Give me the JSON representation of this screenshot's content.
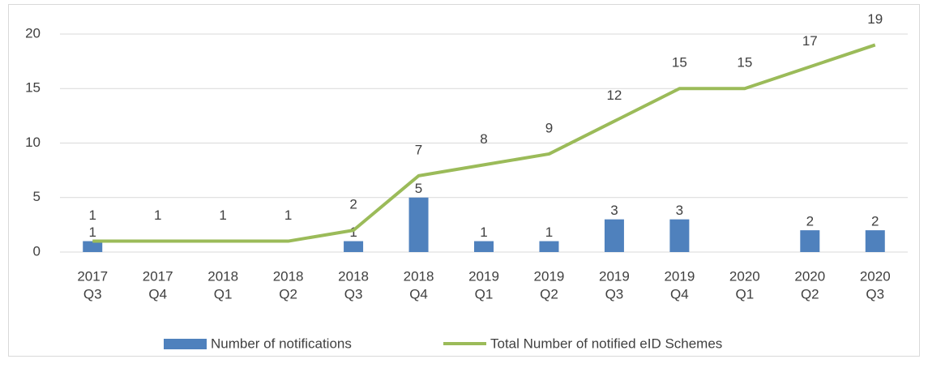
{
  "chart_data": {
    "type": "combo",
    "categories": [
      [
        "2017",
        "Q3"
      ],
      [
        "2017",
        "Q4"
      ],
      [
        "2018",
        "Q1"
      ],
      [
        "2018",
        "Q2"
      ],
      [
        "2018",
        "Q3"
      ],
      [
        "2018",
        "Q4"
      ],
      [
        "2019",
        "Q1"
      ],
      [
        "2019",
        "Q2"
      ],
      [
        "2019",
        "Q3"
      ],
      [
        "2019",
        "Q4"
      ],
      [
        "2020",
        "Q1"
      ],
      [
        "2020",
        "Q2"
      ],
      [
        "2020",
        "Q3"
      ]
    ],
    "series": [
      {
        "name": "Number of notifications",
        "type": "bar",
        "color": "#4f81bd",
        "values": [
          1,
          null,
          null,
          null,
          1,
          5,
          1,
          1,
          3,
          3,
          null,
          2,
          2
        ]
      },
      {
        "name": "Total Number of notified eID Schemes",
        "type": "line",
        "color": "#9bbb59",
        "values": [
          1,
          1,
          1,
          1,
          2,
          7,
          8,
          9,
          12,
          15,
          15,
          17,
          19
        ]
      }
    ],
    "ylim": [
      0,
      20
    ],
    "yticks": [
      0,
      5,
      10,
      15,
      20
    ],
    "grid": true,
    "legend": "bottom"
  }
}
